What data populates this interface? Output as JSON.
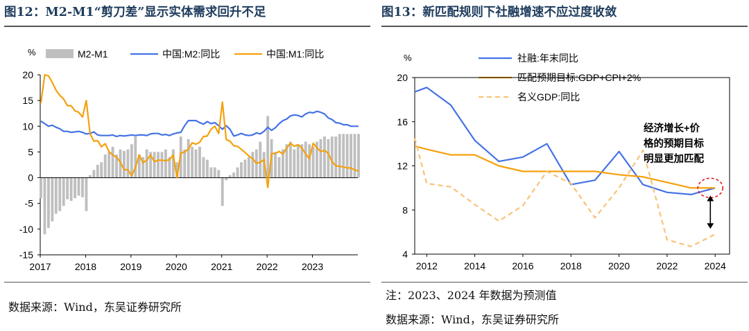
{
  "left": {
    "title": "图12：M2-M1“剪刀差”显示实体需求回升不足",
    "source": "数据来源：Wind，东吴证券研究所",
    "legend": [
      {
        "label": "M2-M1",
        "kind": "bar",
        "color": "#bfbfbf"
      },
      {
        "label": "中国:M2:同比",
        "kind": "line",
        "color": "#4472e6"
      },
      {
        "label": "中国:M1:同比",
        "kind": "line",
        "color": "#f5a00a"
      }
    ],
    "chart_data": {
      "type": "bar+line",
      "ylabel": "%",
      "ylim": [
        -15,
        20
      ],
      "yticks": [
        -15,
        -10,
        -5,
        0,
        5,
        10,
        15,
        20
      ],
      "xlim": [
        2017.0,
        2024.0
      ],
      "xticks": [
        2017,
        2018,
        2019,
        2020,
        2021,
        2022,
        2023
      ],
      "start": 2017.0,
      "step": 0.08333,
      "series": [
        {
          "name": "M2-M1",
          "type": "bar",
          "color": "#bfbfbf",
          "values": [
            -4.0,
            -11.0,
            -9.8,
            -8.5,
            -7.0,
            -6.5,
            -5.5,
            -4.2,
            -4.5,
            -4.0,
            -3.5,
            -3.8,
            -6.5,
            0.5,
            1.5,
            2.5,
            3.0,
            4.5,
            5.0,
            6.0,
            4.5,
            5.5,
            5.2,
            5.5,
            6.5,
            8.0,
            4.5,
            4.0,
            5.5,
            5.0,
            5.0,
            5.0,
            5.0,
            5.5,
            4.0,
            5.5,
            3.0,
            8.0,
            5.5,
            7.5,
            6.0,
            5.5,
            6.0,
            4.0,
            3.5,
            2.0,
            2.0,
            1.5,
            -5.5,
            -0.5,
            0.5,
            1.0,
            2.0,
            3.0,
            3.5,
            4.0,
            5.0,
            5.5,
            7.0,
            5.0,
            12.0,
            7.5,
            5.0,
            4.0,
            5.5,
            6.5,
            7.0,
            5.5,
            6.5,
            6.5,
            7.0,
            6.5,
            6.0,
            7.0,
            7.5,
            8.0,
            7.5,
            8.0,
            8.0,
            8.5,
            8.5,
            8.5,
            8.5,
            8.5,
            8.5
          ]
        },
        {
          "name": "中国:M2:同比",
          "type": "line",
          "color": "#4472e6",
          "values": [
            11.0,
            10.5,
            10.0,
            10.2,
            9.8,
            9.5,
            9.0,
            9.0,
            8.8,
            8.9,
            9.0,
            8.8,
            8.5,
            8.6,
            8.9,
            8.3,
            8.2,
            8.2,
            8.2,
            8.3,
            8.0,
            8.2,
            8.1,
            8.2,
            8.3,
            8.2,
            8.3,
            8.3,
            8.2,
            8.5,
            8.6,
            8.6,
            8.3,
            8.4,
            8.2,
            8.5,
            8.7,
            8.8,
            10.1,
            11.1,
            11.1,
            11.1,
            10.7,
            10.4,
            10.9,
            10.5,
            10.7,
            10.1,
            9.4,
            10.1,
            9.4,
            8.1,
            8.3,
            8.6,
            8.3,
            8.2,
            8.3,
            8.7,
            8.5,
            9.0,
            9.8,
            9.2,
            9.7,
            10.5,
            11.1,
            11.4,
            12.0,
            12.2,
            12.1,
            11.8,
            12.4,
            12.7,
            12.6,
            12.9,
            12.7,
            12.4,
            11.6,
            11.3,
            10.7,
            10.6,
            10.3,
            10.3,
            10.0,
            10.0,
            10.0
          ]
        },
        {
          "name": "中国:M1:同比",
          "type": "line",
          "color": "#f5a00a",
          "values": [
            14.5,
            20.0,
            19.8,
            18.5,
            17.0,
            16.0,
            15.3,
            14.0,
            14.0,
            13.0,
            12.7,
            11.8,
            15.0,
            8.5,
            7.1,
            7.2,
            6.0,
            6.6,
            5.1,
            4.4,
            4.0,
            3.0,
            1.6,
            1.5,
            0.4,
            2.0,
            4.4,
            2.9,
            3.4,
            4.4,
            3.1,
            3.4,
            3.4,
            3.3,
            3.5,
            4.4,
            0.0,
            4.8,
            5.0,
            5.5,
            6.8,
            6.5,
            6.9,
            8.0,
            8.1,
            9.4,
            10.0,
            8.6,
            14.7,
            7.4,
            7.1,
            6.2,
            6.1,
            5.5,
            4.9,
            4.2,
            3.7,
            2.8,
            3.0,
            3.5,
            -1.9,
            4.7,
            4.7,
            5.1,
            4.6,
            5.8,
            6.7,
            6.1,
            6.4,
            5.8,
            4.6,
            3.7,
            6.7,
            5.8,
            5.1,
            5.3,
            4.7,
            3.1,
            2.3,
            2.2,
            2.1,
            1.9,
            1.9,
            1.5,
            1.3
          ]
        }
      ]
    }
  },
  "right": {
    "title": "图13：新匹配规则下社融增速不应过度收敛",
    "note": "注：2023、2024 年数据为预测值",
    "source": "数据来源：Wind，东吴证券研究所",
    "annotation": [
      "经济增长+价",
      "格的预期目标",
      "明显更加匹配"
    ],
    "legend": [
      {
        "label": "社融:年末同比",
        "kind": "line",
        "color": "#4472e6"
      },
      {
        "label": "匹配预期目标:GDP+CPI+2%",
        "kind": "line",
        "color": "#f5a00a"
      },
      {
        "label": "名义GDP:同比",
        "kind": "dash",
        "color": "#f8c275"
      }
    ],
    "chart_data": {
      "type": "line",
      "ylabel": "%",
      "ylim": [
        4,
        20
      ],
      "yticks": [
        4,
        8,
        12,
        16,
        20
      ],
      "xlim": [
        2011.5,
        2024.6
      ],
      "xticks": [
        2012,
        2014,
        2016,
        2018,
        2020,
        2022,
        2024
      ],
      "series": [
        {
          "name": "社融:年末同比",
          "style": "solid",
          "color": "#4472e6",
          "x": [
            2011.5,
            2012,
            2013,
            2014,
            2015,
            2016,
            2017,
            2018,
            2019,
            2020,
            2021,
            2022,
            2023,
            2024
          ],
          "y": [
            18.7,
            19.1,
            17.5,
            14.3,
            12.4,
            12.8,
            14.0,
            10.3,
            10.7,
            13.3,
            10.3,
            9.6,
            9.4,
            10.0
          ]
        },
        {
          "name": "匹配预期目标:GDP+CPI+2%",
          "style": "solid",
          "color": "#f5a00a",
          "x": [
            2011.5,
            2012,
            2013,
            2014,
            2015,
            2016,
            2017,
            2018,
            2019,
            2020,
            2021,
            2022,
            2023,
            2024
          ],
          "y": [
            13.8,
            13.5,
            13.0,
            13.0,
            12.0,
            11.5,
            11.5,
            11.5,
            11.5,
            11.2,
            11.0,
            10.5,
            10.0,
            10.0
          ]
        },
        {
          "name": "名义GDP:同比",
          "style": "dashed",
          "color": "#f8c275",
          "x": [
            2011.5,
            2012,
            2013,
            2014,
            2015,
            2016,
            2017,
            2018,
            2019,
            2020,
            2021,
            2022,
            2023,
            2024
          ],
          "y": [
            14.5,
            10.4,
            10.1,
            8.5,
            7.0,
            8.4,
            11.5,
            10.4,
            7.3,
            10.0,
            13.4,
            5.3,
            4.7,
            5.8
          ]
        }
      ],
      "highlight": {
        "x": 2023.8,
        "y": 10.0
      },
      "arrow": {
        "x": 2023.8,
        "from": 9.3,
        "to": 6.3
      }
    }
  }
}
